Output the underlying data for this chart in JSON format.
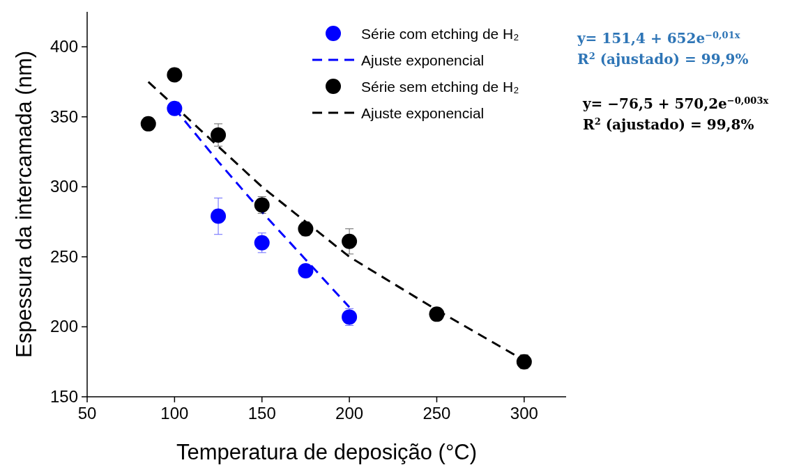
{
  "chart_data": {
    "type": "scatter",
    "xlabel": "Temperatura de deposição (°C)",
    "ylabel": "Espessura da intercamada (nm)",
    "xlim": [
      50,
      324
    ],
    "ylim": [
      150,
      425
    ],
    "xticks": [
      50,
      100,
      150,
      200,
      250,
      300
    ],
    "yticks": [
      150,
      200,
      250,
      300,
      350,
      400
    ],
    "grid": false,
    "legend": "top right",
    "series": [
      {
        "name": "Série com etching de H₂",
        "marker": "circle",
        "color": "#0000ff",
        "x": [
          100,
          125,
          150,
          175,
          200
        ],
        "values": [
          356,
          279,
          260,
          240,
          207
        ],
        "errors": [
          null,
          13,
          7,
          null,
          6
        ]
      },
      {
        "name": "Ajuste exponencial",
        "type": "line",
        "line_style": "dashed",
        "color": "#0000ff",
        "x": [
          100,
          125,
          150,
          175,
          200
        ],
        "values": [
          356,
          318,
          282,
          248,
          214
        ]
      },
      {
        "name": "Série sem etching de H₂",
        "marker": "circle",
        "color": "#000000",
        "x": [
          85,
          100,
          125,
          150,
          175,
          200,
          250,
          300
        ],
        "values": [
          345,
          380,
          337,
          287,
          270,
          261,
          209,
          175
        ],
        "errors": [
          null,
          null,
          8,
          6,
          5,
          9,
          null,
          5
        ]
      },
      {
        "name": "Ajuste exponencial",
        "type": "line",
        "line_style": "dashed",
        "color": "#000000",
        "x": [
          85,
          150,
          200,
          250,
          300
        ],
        "values": [
          375,
          300,
          250,
          212,
          176
        ]
      }
    ],
    "annotations": [
      "y= 151,4 + 652e$^{−0,01x}$",
      "R$^{2}$ (ajustado) = 99,9%",
      "y= −76,5 + 570,2e$^{−0,003x}$",
      "R$^{2}$ (ajustado) = 99,8%"
    ]
  }
}
